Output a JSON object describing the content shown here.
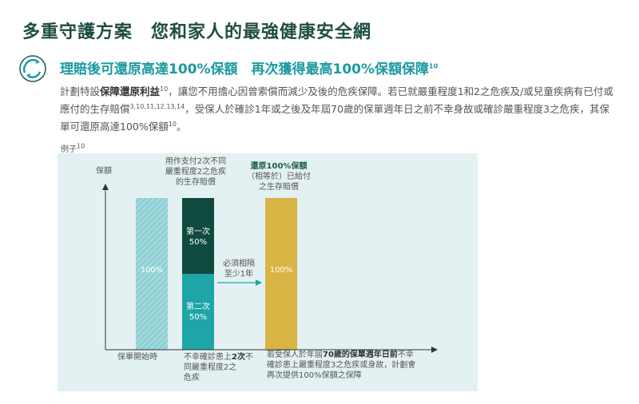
{
  "header": {
    "title": "多重守護方案　您和家人的最強健康安全網",
    "subtitle_main": "理賠後可還原高達100%保額　再次獲得最高100%保額保障",
    "subtitle_sup": "10",
    "icon": "circular-arrows-icon"
  },
  "body": {
    "p_a": "計劃特設",
    "p_bold": "保障還原利益",
    "p_sup1": "10",
    "p_b": "，讓您不用擔心因曾索償而減少及後的危疾保障。若已就嚴重程度1和2之危疾及/或兒童疾病有已付或應付的生存賠償",
    "p_sup2": "3,10,11,12,13,14",
    "p_c": "，受保人於確診1年或之後及年屆70歲的保單週年日之前不幸身故或確診嚴重程度3之危疾，其保單可還原高達100%保額",
    "p_sup3": "10",
    "p_d": "。"
  },
  "example": {
    "label": "例子",
    "sup": "10"
  },
  "chart": {
    "y_label": "保額",
    "bar1_label": "100%",
    "top_annotation": "用作支付2次不同嚴重程度2之危疾的生存賠償",
    "first_claim": "第一次\n50%",
    "second_claim": "第二次\n50%",
    "gap_label": "必須相隔\n至少1年",
    "bar3_label": "100%",
    "restore_bold": "還原100%保額",
    "restore_rest": "（相等於）已給付\n之生存賠償",
    "x_label_1": "保單開始時",
    "x_label_2_a": "不幸確診患上",
    "x_label_2_b": "2次",
    "x_label_2_c": "不同嚴重程度2之\n危疾",
    "x_label_3_a": "若受保人於年屆",
    "x_label_3_b": "70歲的保單週年日前",
    "x_label_3_c": "不幸\n確診患上嚴重程度3之危疾或身故，計劃會\n再次提供100%保額之保障",
    "colors": {
      "teal_light": "#7fcbd0",
      "dark_green": "#0f4a3e",
      "teal": "#1ea5a7",
      "gold": "#d8b444"
    }
  },
  "chart_data": {
    "type": "bar",
    "categories": [
      "保單開始時",
      "不幸確診患上2次不同嚴重程度2之危疾",
      "若受保人於年屆70歲的保單週年日前不幸確診患上嚴重程度3之危疾或身故，計劃會再次提供100%保額之保障"
    ],
    "series": [
      {
        "name": "",
        "values": [
          100,
          null,
          100
        ]
      },
      {
        "name": "第二次",
        "values": [
          null,
          50,
          null
        ]
      },
      {
        "name": "第一次",
        "values": [
          null,
          50,
          null
        ]
      }
    ],
    "ylabel": "保額",
    "ylim": [
      0,
      100
    ]
  }
}
